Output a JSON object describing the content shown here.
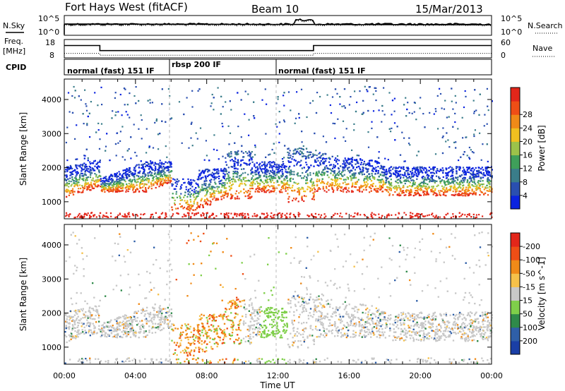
{
  "header": {
    "station": "Fort Hays West (fitACF)",
    "beam": "Beam 10",
    "date": "15/Mar/2013"
  },
  "sidebar_labels": {
    "nsky": "N.Sky",
    "freq_top": "Freq.",
    "freq_unit": "[MHz]",
    "cpid": "CPID",
    "nsearch": "N.Search",
    "nave": "Nave"
  },
  "noise_panel": {
    "left_ticks": [
      "10^5",
      "10^0"
    ],
    "right_ticks": [
      "10^5",
      "10^0"
    ]
  },
  "freq_panel": {
    "left_ticks": [
      "18",
      "8"
    ],
    "right_ticks": [
      "60",
      "0"
    ],
    "freq_segments_hours": [
      [
        0,
        2,
        15.5
      ],
      [
        2,
        14,
        11.5
      ],
      [
        14,
        24,
        15.5
      ]
    ],
    "nave_segments_hours": [
      [
        0,
        2,
        12
      ],
      [
        2,
        14,
        5
      ],
      [
        14,
        24,
        12
      ]
    ]
  },
  "cpid_panel": {
    "segments": [
      {
        "label": "normal (fast) 151 IF",
        "start": 0,
        "end": 6
      },
      {
        "label": "rbsp 200 IF",
        "start": 6,
        "end": 12
      },
      {
        "label": "normal (fast) 151 IF",
        "start": 12,
        "end": 24
      }
    ]
  },
  "chart_data": [
    {
      "type": "heatmap",
      "name": "power",
      "ylabel": "Slant Range [km]",
      "yticks": [
        "1000",
        "2000",
        "3000",
        "4000"
      ],
      "ylim": [
        500,
        4600
      ],
      "colorbar_label": "Power [dB]",
      "colorbar_ticks": [
        "4",
        "8",
        "12",
        "16",
        "20",
        "24",
        "28"
      ],
      "colorbar_colors": [
        "#0b23e0",
        "#2a4fb0",
        "#3a7d8a",
        "#3f9f5a",
        "#9cc24a",
        "#f0c020",
        "#f08a18",
        "#ef4e16",
        "#e3261a"
      ]
    },
    {
      "type": "heatmap",
      "name": "velocity",
      "ylabel": "Slant Range [km]",
      "yticks": [
        "1000",
        "2000",
        "3000",
        "4000"
      ],
      "ylim": [
        500,
        4600
      ],
      "colorbar_label": "Velocity [m s^-1]",
      "colorbar_ticks": [
        "200",
        "100",
        "50",
        "15",
        "-15",
        "-50",
        "-100",
        "-200"
      ],
      "colorbar_colors": [
        "#1a3fa6",
        "#2f5fa8",
        "#2f8a4a",
        "#7fcf4a",
        "#c8c8c8",
        "#f6c14a",
        "#f08a18",
        "#ef4e16",
        "#e3261a"
      ]
    }
  ],
  "xaxis": {
    "label": "Time UT",
    "ticks": [
      "00:00",
      "04:00",
      "08:00",
      "12:00",
      "16:00",
      "20:00",
      "00:00"
    ],
    "range_hours": [
      0,
      24
    ]
  }
}
